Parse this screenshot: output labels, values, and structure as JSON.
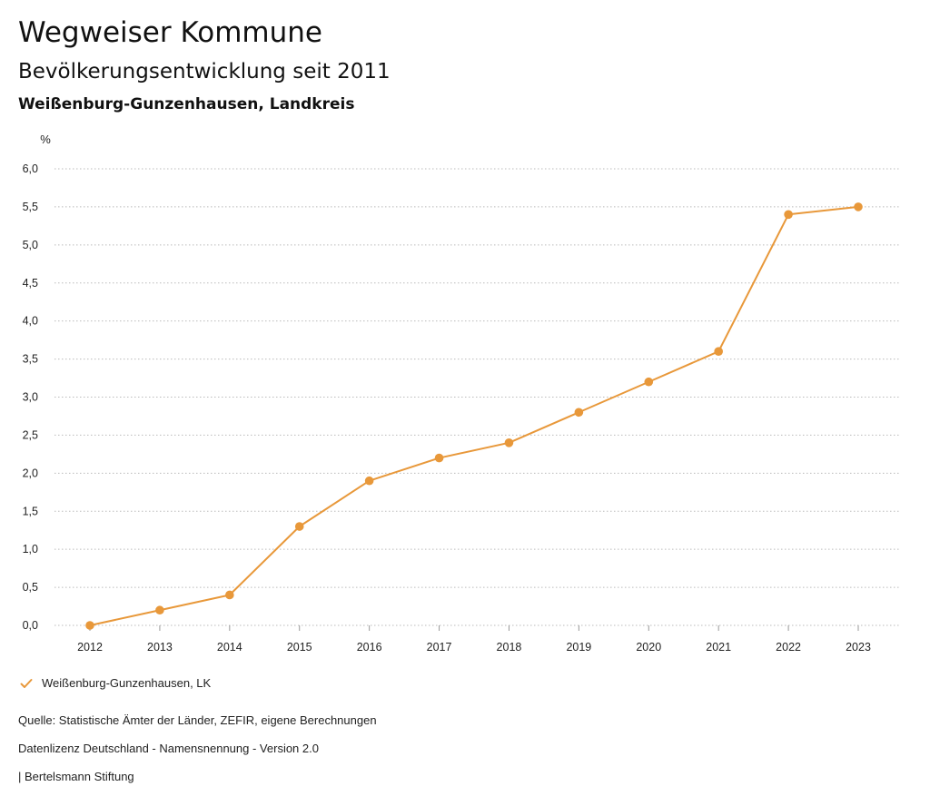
{
  "header": {
    "title": "Wegweiser Kommune",
    "subtitle": "Bevölkerungsentwicklung seit 2011",
    "region": "Weißenburg-Gunzenhausen, Landkreis"
  },
  "legend": {
    "label": "Weißenburg-Gunzenhausen, LK",
    "marker_icon": "check-icon"
  },
  "footer": {
    "source": "Quelle: Statistische Ämter der Länder, ZEFIR, eigene Berechnungen",
    "license": "Datenlizenz Deutschland - Namensnennung - Version 2.0",
    "brand": "| Bertelsmann Stiftung"
  },
  "colors": {
    "series": "#E8983A",
    "grid": "#bbbbbb",
    "text": "#222222"
  },
  "chart_data": {
    "type": "line",
    "ylabel": "%",
    "xlabel": "",
    "x": [
      "2012",
      "2013",
      "2014",
      "2015",
      "2016",
      "2017",
      "2018",
      "2019",
      "2020",
      "2021",
      "2022",
      "2023"
    ],
    "ylim": [
      0,
      6
    ],
    "yticks": [
      "0,0",
      "0,5",
      "1,0",
      "1,5",
      "2,0",
      "2,5",
      "3,0",
      "3,5",
      "4,0",
      "4,5",
      "5,0",
      "5,5",
      "6,0"
    ],
    "grid": "horizontal dotted",
    "legend_position": "bottom-left",
    "series": [
      {
        "name": "Weißenburg-Gunzenhausen, LK",
        "values": [
          0.0,
          0.2,
          0.4,
          1.3,
          1.9,
          2.2,
          2.4,
          2.8,
          3.2,
          3.6,
          5.4,
          5.5
        ]
      }
    ]
  }
}
